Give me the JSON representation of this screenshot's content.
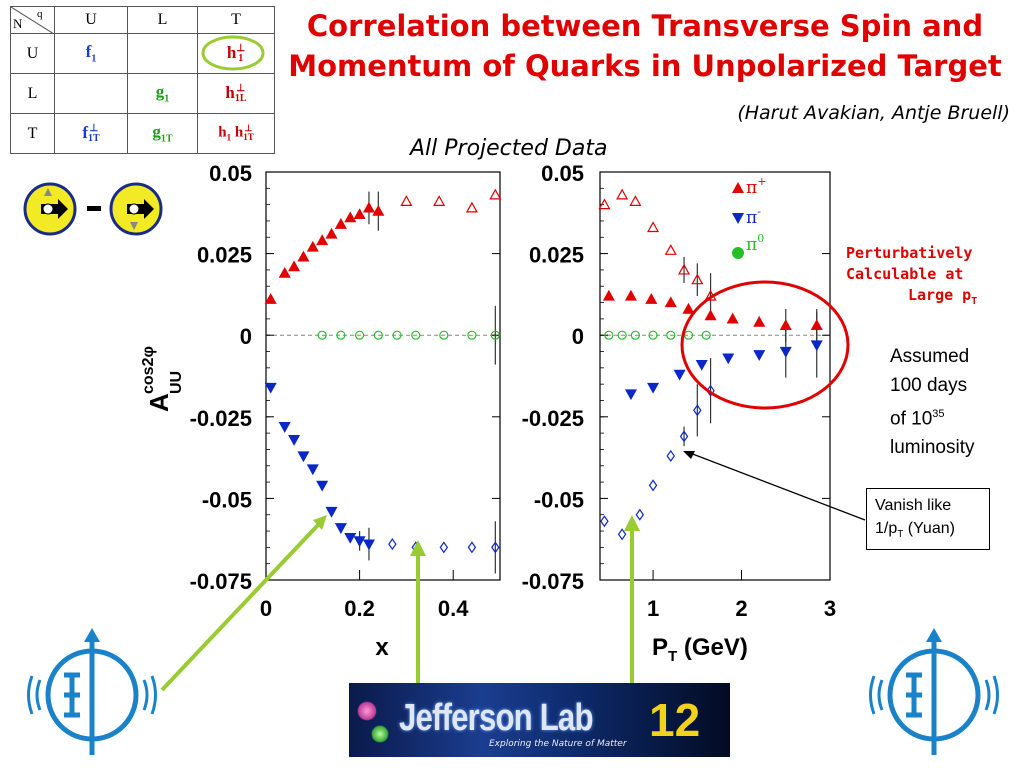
{
  "title": {
    "line1": "Correlation between Transverse Spin and",
    "line2": "Momentum of Quarks in Unpolarized Target"
  },
  "authors": "(Harut Avakian, Antje Bruell)",
  "subtitle": "All Projected Data",
  "perturbative": {
    "line1": "Perturbatively",
    "line2": "Calculable at",
    "line3_main": "Large p",
    "line3_sub": "T"
  },
  "assumed": {
    "line1": "Assumed",
    "line2": "100 days",
    "line3_main": "of 10",
    "line3_sup": "35",
    "line4": "luminosity"
  },
  "vanish": {
    "line1": "Vanish like",
    "line2_main": "1/p",
    "line2_sub": "T",
    "line2_rest": " (Yuan)"
  },
  "matrix": {
    "corner_n": "N",
    "corner_q": "q",
    "col_headers": [
      "U",
      "L",
      "T"
    ],
    "row_headers": [
      "U",
      "L",
      "T"
    ],
    "cells": {
      "UU": {
        "main": "f",
        "sub": "1",
        "sup": ""
      },
      "UT": {
        "main": "h",
        "sub": "1",
        "sup": "⊥"
      },
      "LL": {
        "main": "g",
        "sub": "1",
        "sup": ""
      },
      "LT": {
        "main": "h",
        "sub": "1L",
        "sup": "⊥"
      },
      "TU": {
        "main": "f",
        "sub": "1T",
        "sup": "⊥"
      },
      "TL": {
        "main": "g",
        "sub": "1T",
        "sup": ""
      },
      "TT1": {
        "main": "h",
        "sub": "1",
        "sup": ""
      },
      "TT2": {
        "main": "h",
        "sub": "1T",
        "sup": "⊥"
      }
    }
  },
  "logo": {
    "text": "Jefferson Lab",
    "number": "12",
    "tagline": "Exploring the Nature of Matter"
  },
  "colors": {
    "title": "#e00000",
    "pi_plus": "#e00000",
    "pi_minus": "#0a28c8",
    "pi_zero": "#22c022",
    "arrow": "#99cc33",
    "circle": "#e00000"
  },
  "chart_data": [
    {
      "type": "scatter",
      "xlabel": "x",
      "ylabel_main": "A",
      "ylabel_sup": "cos2φ",
      "ylabel_sub": "UU",
      "xlim": [
        0,
        0.5
      ],
      "ylim": [
        -0.075,
        0.05
      ],
      "xticks": [
        "0",
        "0.2",
        "0.4"
      ],
      "xtick_values": [
        0,
        0.2,
        0.4
      ],
      "yticks": [
        "0.05",
        "0.025",
        "0",
        "-0.025",
        "-0.05",
        "-0.075"
      ],
      "ytick_values": [
        0.05,
        0.025,
        0,
        -0.025,
        -0.05,
        -0.075
      ],
      "series": [
        {
          "name": "π+",
          "marker": "triangle-up",
          "filled": true,
          "x": [
            0.01,
            0.04,
            0.06,
            0.08,
            0.1,
            0.12,
            0.14,
            0.16,
            0.18,
            0.2,
            0.22,
            0.24
          ],
          "y": [
            0.011,
            0.019,
            0.021,
            0.024,
            0.027,
            0.029,
            0.031,
            0.034,
            0.036,
            0.037,
            0.039,
            0.038
          ]
        },
        {
          "name": "π+",
          "marker": "triangle-up",
          "filled": false,
          "x": [
            0.3,
            0.37,
            0.44,
            0.49
          ],
          "y": [
            0.041,
            0.041,
            0.039,
            0.043
          ]
        },
        {
          "name": "π-",
          "marker": "triangle-down",
          "filled": true,
          "x": [
            0.01,
            0.04,
            0.06,
            0.08,
            0.1,
            0.12,
            0.14,
            0.16,
            0.18,
            0.2,
            0.22
          ],
          "y": [
            -0.016,
            -0.028,
            -0.032,
            -0.037,
            -0.041,
            -0.046,
            -0.054,
            -0.059,
            -0.062,
            -0.063,
            -0.064
          ]
        },
        {
          "name": "π-",
          "marker": "diamond",
          "filled": false,
          "x": [
            0.27,
            0.32,
            0.38,
            0.44,
            0.49
          ],
          "y": [
            -0.064,
            -0.065,
            -0.065,
            -0.065,
            -0.065
          ]
        },
        {
          "name": "π0",
          "marker": "circle",
          "filled": false,
          "x": [
            0.12,
            0.16,
            0.2,
            0.24,
            0.28,
            0.32,
            0.38,
            0.44,
            0.49
          ],
          "y": [
            0,
            0,
            0,
            0,
            0,
            0,
            0,
            0,
            0
          ]
        }
      ],
      "error_bars": [
        {
          "x": 0.22,
          "y": 0.039,
          "e": 0.005
        },
        {
          "x": 0.24,
          "y": 0.038,
          "e": 0.006
        },
        {
          "x": 0.2,
          "y": -0.063,
          "e": 0.003
        },
        {
          "x": 0.22,
          "y": -0.064,
          "e": 0.005
        },
        {
          "x": 0.49,
          "y": -0.065,
          "e": 0.008
        },
        {
          "x": 0.49,
          "y": 0,
          "e": 0.009
        }
      ]
    },
    {
      "type": "scatter",
      "xlabel_main": "P",
      "xlabel_sub": "T",
      "xlabel_rest": " (GeV)",
      "xlim": [
        0.4,
        3.0
      ],
      "ylim": [
        -0.075,
        0.05
      ],
      "xticks": [
        "1",
        "2",
        "3"
      ],
      "xtick_values": [
        1,
        2,
        3
      ],
      "yticks": [
        "0.05",
        "0.025",
        "0",
        "-0.025",
        "-0.05",
        "-0.075"
      ],
      "ytick_values": [
        0.05,
        0.025,
        0,
        -0.025,
        -0.05,
        -0.075
      ],
      "legend": [
        "π+",
        "π-",
        "π0"
      ],
      "legend_labels": {
        "pi_plus_main": "π",
        "pi_plus_sup": "+",
        "pi_minus_main": "π",
        "pi_minus_sup": "-",
        "pi_zero_main": "π",
        "pi_zero_sup": "0"
      },
      "legend_position": "top-right",
      "series": [
        {
          "name": "π+",
          "marker": "triangle-up",
          "filled": false,
          "x": [
            0.45,
            0.65,
            0.8,
            1.0,
            1.2,
            1.35,
            1.5,
            1.65
          ],
          "y": [
            0.04,
            0.043,
            0.041,
            0.033,
            0.026,
            0.02,
            0.017,
            0.012
          ]
        },
        {
          "name": "π+",
          "marker": "triangle-up",
          "filled": true,
          "x": [
            0.5,
            0.75,
            0.98,
            1.2,
            1.4,
            1.65,
            1.9,
            2.2,
            2.5,
            2.85
          ],
          "y": [
            0.012,
            0.012,
            0.011,
            0.01,
            0.008,
            0.006,
            0.005,
            0.004,
            0.003,
            0.003
          ]
        },
        {
          "name": "π-",
          "marker": "triangle-down",
          "filled": true,
          "x": [
            0.75,
            1.0,
            1.3,
            1.55,
            1.85,
            2.2,
            2.5,
            2.85
          ],
          "y": [
            -0.018,
            -0.016,
            -0.012,
            -0.009,
            -0.007,
            -0.006,
            -0.005,
            -0.003
          ]
        },
        {
          "name": "π-",
          "marker": "diamond",
          "filled": false,
          "x": [
            0.45,
            0.65,
            0.85,
            1.0,
            1.2,
            1.35,
            1.5,
            1.65
          ],
          "y": [
            -0.057,
            -0.061,
            -0.055,
            -0.046,
            -0.037,
            -0.031,
            -0.023,
            -0.017
          ]
        },
        {
          "name": "π0",
          "marker": "circle",
          "filled": false,
          "x": [
            0.5,
            0.65,
            0.8,
            1.0,
            1.2,
            1.4,
            1.6
          ],
          "y": [
            0,
            0,
            0,
            0,
            0,
            0,
            0
          ]
        }
      ],
      "error_bars": [
        {
          "x": 1.35,
          "y": 0.02,
          "e": 0.004
        },
        {
          "x": 1.5,
          "y": 0.017,
          "e": 0.005
        },
        {
          "x": 1.65,
          "y": 0.012,
          "e": 0.007
        },
        {
          "x": 1.5,
          "y": -0.023,
          "e": 0.008
        },
        {
          "x": 1.65,
          "y": -0.017,
          "e": 0.01
        },
        {
          "x": 1.35,
          "y": -0.031,
          "e": 0.003
        },
        {
          "x": 2.5,
          "y": -0.005,
          "e": 0.008
        },
        {
          "x": 2.85,
          "y": -0.003,
          "e": 0.01
        },
        {
          "x": 2.5,
          "y": 0.003,
          "e": 0.005
        },
        {
          "x": 2.85,
          "y": 0.003,
          "e": 0.005
        }
      ]
    }
  ]
}
